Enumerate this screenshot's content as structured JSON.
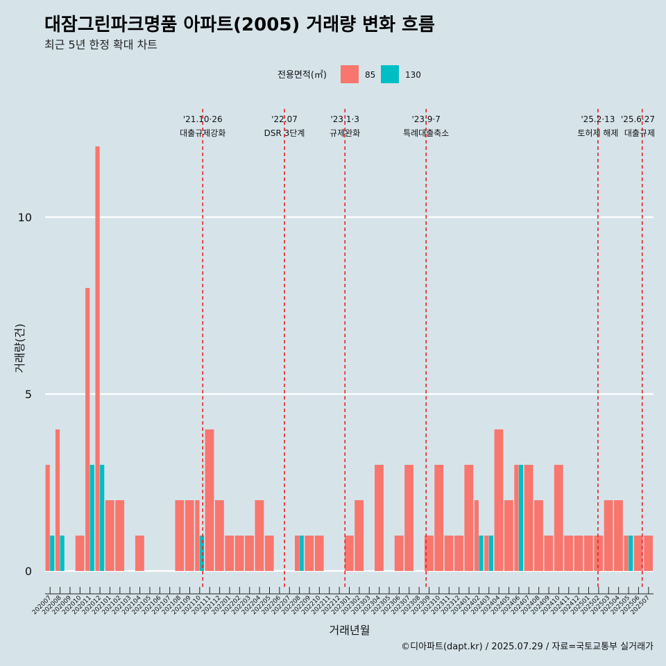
{
  "chart_data": {
    "type": "bar",
    "title": "대잠그린파크명품 아파트(2005) 거래량 변화 흐름",
    "subtitle": "최근 5년 한정 확대 차트",
    "xlabel": "거래년월",
    "ylabel": "거래량(건)",
    "ylim": [
      0,
      12
    ],
    "yticks": [
      0,
      5,
      10
    ],
    "grid": true,
    "legend": {
      "title": "전용면적(㎡)",
      "placement": "top",
      "entries": [
        {
          "label": "85",
          "color": "#f8766d"
        },
        {
          "label": "130",
          "color": "#00bfc4"
        }
      ]
    },
    "categories": [
      "202007",
      "202008",
      "202009",
      "202010",
      "202011",
      "202012",
      "202101",
      "202102",
      "202103",
      "202104",
      "202105",
      "202106",
      "202107",
      "202108",
      "202109",
      "202110",
      "202111",
      "202112",
      "202201",
      "202202",
      "202203",
      "202204",
      "202205",
      "202206",
      "202207",
      "202208",
      "202209",
      "202210",
      "202211",
      "202212",
      "202301",
      "202302",
      "202303",
      "202304",
      "202305",
      "202306",
      "202307",
      "202308",
      "202309",
      "202310",
      "202311",
      "202312",
      "202401",
      "202402",
      "202403",
      "202404",
      "202405",
      "202406",
      "202407",
      "202408",
      "202409",
      "202410",
      "202411",
      "202412",
      "202501",
      "202502",
      "202503",
      "202504",
      "202505",
      "202506",
      "202507"
    ],
    "series": [
      {
        "name": "85",
        "color": "#f8766d",
        "values": [
          3,
          4,
          0,
          1,
          8,
          12,
          2,
          2,
          0,
          1,
          0,
          0,
          0,
          2,
          2,
          2,
          4,
          2,
          1,
          1,
          1,
          2,
          1,
          0,
          0,
          1,
          1,
          1,
          0,
          0,
          1,
          2,
          0,
          3,
          0,
          1,
          3,
          0,
          1,
          3,
          1,
          1,
          3,
          2,
          1,
          4,
          2,
          3,
          3,
          2,
          1,
          3,
          1,
          1,
          1,
          1,
          2,
          2,
          1,
          1,
          1
        ]
      },
      {
        "name": "130",
        "color": "#00bfc4",
        "values": [
          1,
          1,
          0,
          0,
          3,
          3,
          0,
          0,
          0,
          0,
          0,
          0,
          0,
          0,
          0,
          1,
          0,
          0,
          0,
          0,
          0,
          0,
          0,
          0,
          0,
          1,
          0,
          0,
          0,
          0,
          0,
          0,
          0,
          0,
          0,
          0,
          0,
          0,
          0,
          0,
          0,
          0,
          0,
          1,
          1,
          0,
          0,
          3,
          0,
          0,
          0,
          0,
          0,
          0,
          0,
          0,
          0,
          0,
          1,
          0,
          0
        ]
      }
    ],
    "events": [
      {
        "date": "'21.10·26",
        "label": "대출규제강화",
        "month": "202110",
        "day": 26,
        "days_in_month": 31
      },
      {
        "date": "'22.07",
        "label": "DSR 3단계",
        "month": "202207",
        "day": 1,
        "days_in_month": 31
      },
      {
        "date": "'23.1·3",
        "label": "규제완화",
        "month": "202301",
        "day": 3,
        "days_in_month": 31
      },
      {
        "date": "'23.9·7",
        "label": "특례대출축소",
        "month": "202309",
        "day": 7,
        "days_in_month": 30
      },
      {
        "date": "'25.2·13",
        "label": "토허제 해제",
        "month": "202502",
        "day": 13,
        "days_in_month": 28
      },
      {
        "date": "'25.6·27",
        "label": "대출규제",
        "month": "202506",
        "day": 27,
        "days_in_month": 30
      }
    ]
  },
  "caption": "©디아파트(dapt.kr) / 2025.07.29 / 자료=국토교통부 실거래가"
}
